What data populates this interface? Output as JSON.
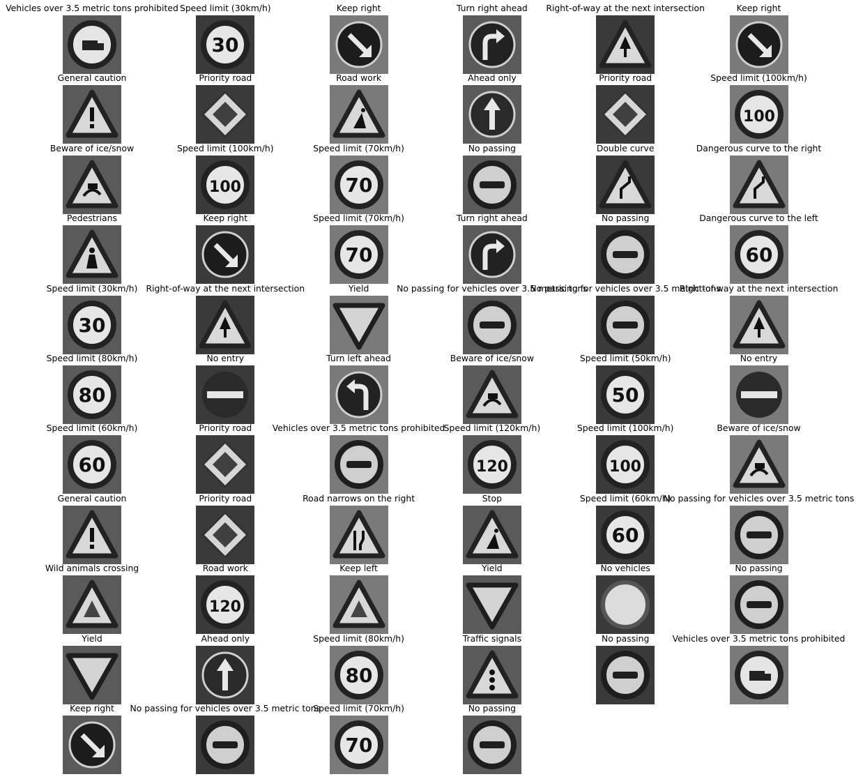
{
  "figure": {
    "columns": 6,
    "panels": [
      {
        "label": "Vehicles over 3.5 metric tons prohibited",
        "icon": "truck"
      },
      {
        "label": "Speed limit (30km/h)",
        "icon": "speed",
        "text": "30"
      },
      {
        "label": "Keep right",
        "icon": "keep-right"
      },
      {
        "label": "Turn right ahead",
        "icon": "turn-right"
      },
      {
        "label": "Right-of-way at the next intersection",
        "icon": "tri-row"
      },
      {
        "label": "Keep right",
        "icon": "keep-right"
      },
      {
        "label": "General caution",
        "icon": "tri-caution"
      },
      {
        "label": "Priority road",
        "icon": "diamond"
      },
      {
        "label": "Road work",
        "icon": "tri-work"
      },
      {
        "label": "Ahead only",
        "icon": "ahead"
      },
      {
        "label": "Priority road",
        "icon": "diamond"
      },
      {
        "label": "Speed limit (100km/h)",
        "icon": "speed",
        "text": "100"
      },
      {
        "label": "Beware of ice/snow",
        "icon": "tri-snow"
      },
      {
        "label": "Speed limit (100km/h)",
        "icon": "speed",
        "text": "100"
      },
      {
        "label": "Speed limit (70km/h)",
        "icon": "speed",
        "text": "70"
      },
      {
        "label": "No passing",
        "icon": "no-passing"
      },
      {
        "label": "Double curve",
        "icon": "tri-curve"
      },
      {
        "label": "Dangerous curve to the right",
        "icon": "tri-curve"
      },
      {
        "label": "Pedestrians",
        "icon": "tri-ped"
      },
      {
        "label": "Keep right",
        "icon": "keep-right"
      },
      {
        "label": "Speed limit (70km/h)",
        "icon": "speed",
        "text": "70"
      },
      {
        "label": "Turn right ahead",
        "icon": "turn-right"
      },
      {
        "label": "No passing",
        "icon": "no-passing"
      },
      {
        "label": "Dangerous curve to the left",
        "icon": "speed",
        "text": "60"
      },
      {
        "label": "Speed limit (30km/h)",
        "icon": "speed",
        "text": "30"
      },
      {
        "label": "Right-of-way at the next intersection",
        "icon": "tri-row"
      },
      {
        "label": "Yield",
        "icon": "yield"
      },
      {
        "label": "No passing for vehicles over 3.5 metric tons",
        "icon": "no-passing"
      },
      {
        "label": "No passing for vehicles over 3.5 metric tons",
        "icon": "no-passing"
      },
      {
        "label": "Right-of-way at the next intersection",
        "icon": "tri-row"
      },
      {
        "label": "Speed limit (80km/h)",
        "icon": "speed",
        "text": "80"
      },
      {
        "label": "No entry",
        "icon": "no-entry"
      },
      {
        "label": "Turn left ahead",
        "icon": "turn-left"
      },
      {
        "label": "Beware of ice/snow",
        "icon": "tri-snow"
      },
      {
        "label": "Speed limit (50km/h)",
        "icon": "speed",
        "text": "50"
      },
      {
        "label": "No entry",
        "icon": "no-entry"
      },
      {
        "label": "Speed limit (60km/h)",
        "icon": "speed",
        "text": "60"
      },
      {
        "label": "Priority road",
        "icon": "diamond"
      },
      {
        "label": "Vehicles over 3.5 metric tons prohibited",
        "icon": "no-passing"
      },
      {
        "label": "Speed limit (120km/h)",
        "icon": "speed",
        "text": "120"
      },
      {
        "label": "Speed limit (100km/h)",
        "icon": "speed",
        "text": "100"
      },
      {
        "label": "Beware of ice/snow",
        "icon": "tri-snow"
      },
      {
        "label": "General caution",
        "icon": "tri-caution"
      },
      {
        "label": "Priority road",
        "icon": "diamond"
      },
      {
        "label": "Road narrows on the right",
        "icon": "tri-narrow"
      },
      {
        "label": "Stop",
        "icon": "tri-work"
      },
      {
        "label": "Speed limit (60km/h)",
        "icon": "speed",
        "text": "60"
      },
      {
        "label": "No passing for vehicles over 3.5 metric tons",
        "icon": "no-passing"
      },
      {
        "label": "Wild animals crossing",
        "icon": "tri-plain"
      },
      {
        "label": "Road work",
        "icon": "speed",
        "text": "120"
      },
      {
        "label": "Keep left",
        "icon": "tri-plain"
      },
      {
        "label": "Yield",
        "icon": "yield"
      },
      {
        "label": "No vehicles",
        "icon": "no-vehicles"
      },
      {
        "label": "No passing",
        "icon": "no-passing"
      },
      {
        "label": "Yield",
        "icon": "yield"
      },
      {
        "label": "Ahead only",
        "icon": "ahead"
      },
      {
        "label": "Speed limit (80km/h)",
        "icon": "speed",
        "text": "80"
      },
      {
        "label": "Traffic signals",
        "icon": "tri-signals"
      },
      {
        "label": "No passing",
        "icon": "no-passing"
      },
      {
        "label": "Vehicles over 3.5 metric tons prohibited",
        "icon": "truck"
      },
      {
        "label": "Keep right",
        "icon": "keep-right"
      },
      {
        "label": "No passing for vehicles over 3.5 metric tons",
        "icon": "no-passing"
      },
      {
        "label": "Speed limit (70km/h)",
        "icon": "speed",
        "text": "70"
      },
      {
        "label": "No passing",
        "icon": "no-passing"
      }
    ]
  }
}
